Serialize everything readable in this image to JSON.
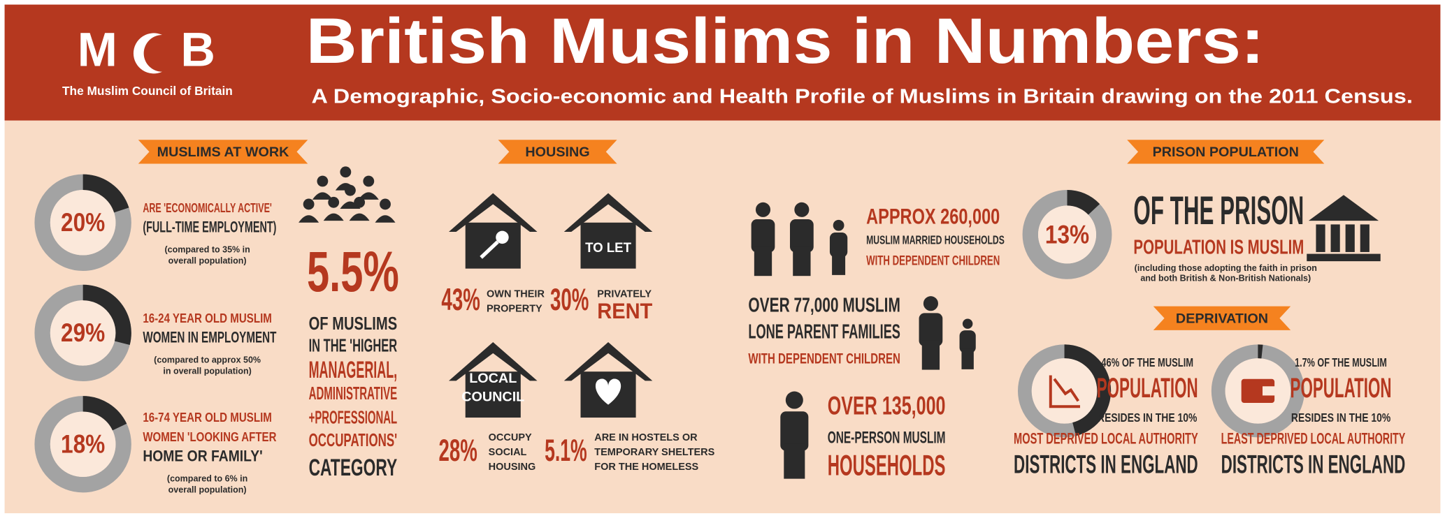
{
  "header": {
    "logo_left": "M",
    "logo_right": "B",
    "organisation": "The Muslim Council of Britain",
    "title": "British Muslims in Numbers:",
    "subtitle": "A Demographic, Socio-economic and Health Profile of Muslims in Britain drawing on the 2011 Census."
  },
  "work": {
    "heading": "MUSLIMS AT WORK",
    "items": [
      {
        "value": 20,
        "label": "20%",
        "lines": [
          "ARE 'ECONOMICALLY ACTIVE'",
          "(FULL-TIME EMPLOYMENT)"
        ],
        "note": [
          "(compared to 35% in",
          "overall population)"
        ]
      },
      {
        "value": 29,
        "label": "29%",
        "lines": [
          "16-24 YEAR OLD MUSLIM",
          "WOMEN IN EMPLOYMENT"
        ],
        "note": [
          "(compared to approx 50%",
          "in overall population)"
        ]
      },
      {
        "value": 18,
        "label": "18%",
        "lines": [
          "16-74 YEAR OLD MUSLIM",
          "WOMEN 'LOOKING AFTER",
          "HOME OR FAMILY'"
        ],
        "note": [
          "(compared to 6% in",
          "overall population)"
        ]
      }
    ],
    "managerial": {
      "stat": "5.5%",
      "lines": [
        "OF MUSLIMS",
        "IN THE 'HIGHER",
        "MANAGERIAL,",
        "ADMINISTRATIVE",
        "+PROFESSIONAL",
        "OCCUPATIONS'",
        "CATEGORY"
      ]
    }
  },
  "housing": {
    "heading": "HOUSING",
    "items": [
      {
        "stat": "43%",
        "lines": [
          "OWN THEIR",
          "PROPERTY"
        ]
      },
      {
        "stat": "30%",
        "lines": [
          "PRIVATELY",
          "RENT"
        ],
        "sign": [
          "TO LET"
        ]
      },
      {
        "stat": "28%",
        "lines": [
          "OCCUPY",
          "SOCIAL",
          "HOUSING"
        ],
        "sign": [
          "LOCAL",
          "COUNCIL"
        ]
      },
      {
        "stat": "5.1%",
        "lines": [
          "ARE IN HOSTELS OR",
          "TEMPORARY SHELTERS",
          "FOR THE HOMELESS"
        ]
      }
    ]
  },
  "households": [
    {
      "lines": [
        "APPROX 260,000",
        "MUSLIM MARRIED HOUSEHOLDS",
        "WITH DEPENDENT CHILDREN"
      ]
    },
    {
      "lines": [
        "OVER 77,000 MUSLIM",
        "LONE PARENT FAMILIES",
        "WITH DEPENDENT CHILDREN"
      ]
    },
    {
      "lines": [
        "OVER 135,000",
        "ONE-PERSON MUSLIM",
        "HOUSEHOLDS"
      ]
    }
  ],
  "prison": {
    "heading": "PRISON POPULATION",
    "value": 13,
    "label": "13%",
    "lines": [
      "OF THE PRISON",
      "POPULATION IS MUSLIM"
    ],
    "note": [
      "(including those adopting the faith in prison",
      "and both British & Non-British Nationals)"
    ]
  },
  "deprivation": {
    "heading": "DEPRIVATION",
    "items": [
      {
        "value": 46,
        "lines": [
          "46% OF THE MUSLIM",
          "POPULATION",
          "RESIDES IN THE 10%",
          "MOST DEPRIVED LOCAL AUTHORITY",
          "DISTRICTS IN ENGLAND"
        ]
      },
      {
        "value": 1.7,
        "lines": [
          "1.7% OF THE MUSLIM",
          "POPULATION",
          "RESIDES IN THE 10%",
          "LEAST DEPRIVED LOCAL AUTHORITY",
          "DISTRICTS IN ENGLAND"
        ]
      }
    ]
  }
}
